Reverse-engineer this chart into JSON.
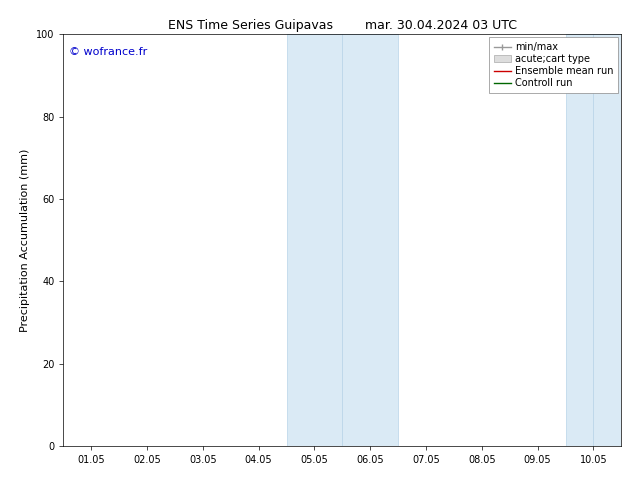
{
  "title": "ENS Time Series Guipavas        mar. 30.04.2024 03 UTC",
  "ylabel": "Precipitation Accumulation (mm)",
  "xlabel": "",
  "ylim": [
    0,
    100
  ],
  "yticks": [
    0,
    20,
    40,
    60,
    80,
    100
  ],
  "xtick_labels": [
    "01.05",
    "02.05",
    "03.05",
    "04.05",
    "05.05",
    "06.05",
    "07.05",
    "08.05",
    "09.05",
    "10.05"
  ],
  "shaded_regions": [
    {
      "xstart": 3.5,
      "xend": 4.5,
      "color": "#daeaf5"
    },
    {
      "xstart": 4.5,
      "xend": 5.5,
      "color": "#daeaf5"
    },
    {
      "xstart": 8.5,
      "xend": 9.0,
      "color": "#daeaf5"
    },
    {
      "xstart": 9.0,
      "xend": 9.5,
      "color": "#daeaf5"
    }
  ],
  "watermark_text": "© wofrance.fr",
  "watermark_color": "#0000cc",
  "background_color": "#ffffff",
  "title_fontsize": 9,
  "axis_label_fontsize": 8,
  "tick_fontsize": 7,
  "legend_fontsize": 7,
  "watermark_fontsize": 8
}
